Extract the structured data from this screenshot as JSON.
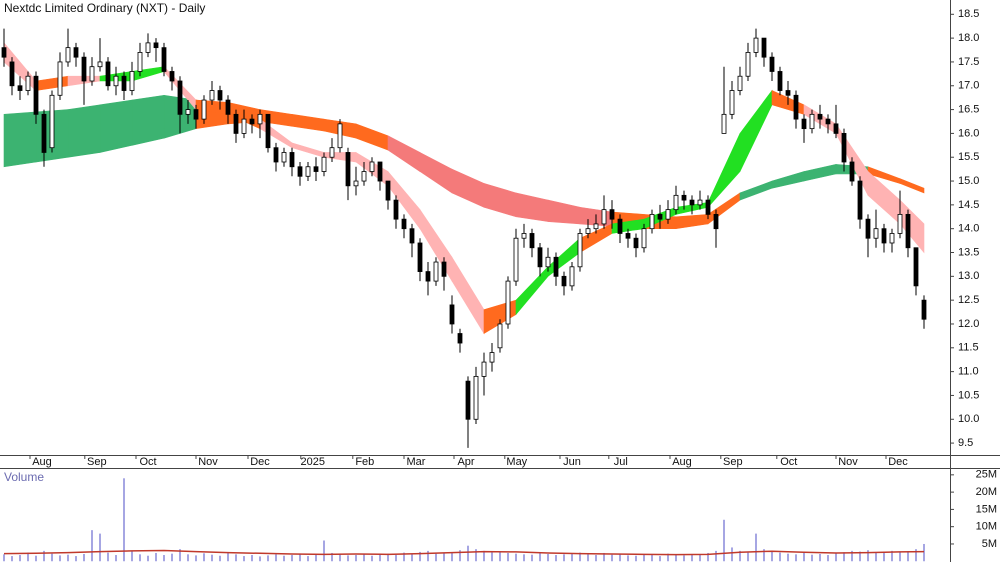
{
  "chart_data": [
    {
      "type": "candlestick",
      "title": "Nextdc Limited Ordinary (NXT) - Daily",
      "xlim": [
        -0.5,
        118.25
      ],
      "xticks": [
        {
          "value": 4.75,
          "label": "Aug"
        },
        {
          "value": 11.6,
          "label": "Sep"
        },
        {
          "value": 18,
          "label": "Oct"
        },
        {
          "value": 25.5,
          "label": "Nov"
        },
        {
          "value": 32,
          "label": "Dec"
        },
        {
          "value": 38.6,
          "label": "2025"
        },
        {
          "value": 45.1,
          "label": "Feb"
        },
        {
          "value": 51.5,
          "label": "Mar"
        },
        {
          "value": 57.75,
          "label": "Apr"
        },
        {
          "value": 64.1,
          "label": "May"
        },
        {
          "value": 71,
          "label": "Jun"
        },
        {
          "value": 77.1,
          "label": "Jul"
        },
        {
          "value": 84.75,
          "label": "Aug"
        },
        {
          "value": 91.1,
          "label": "Sep"
        },
        {
          "value": 98.1,
          "label": "Oct"
        },
        {
          "value": 105.5,
          "label": "Nov"
        },
        {
          "value": 111.75,
          "label": "Dec"
        }
      ],
      "ylim": [
        9.25,
        18.8
      ],
      "yticks": [
        9.5,
        {
          "value": 10,
          "label": "10.0"
        },
        10.5,
        {
          "value": 11,
          "label": "11.0"
        },
        11.5,
        {
          "value": 12,
          "label": "12.0"
        },
        12.5,
        {
          "value": 13,
          "label": "13.0"
        },
        13.5,
        {
          "value": 14,
          "label": "14.0"
        },
        14.5,
        {
          "value": 15,
          "label": "15.0"
        },
        15.5,
        {
          "value": 16,
          "label": "16.0"
        },
        16.5,
        {
          "value": 17,
          "label": "17.0"
        },
        17.5,
        {
          "value": 18,
          "label": "18.0"
        },
        18.5
      ],
      "up_color": "#ffffff",
      "down_color": "#000000",
      "ohlc": [
        [
          17.8,
          18.2,
          17.4,
          17.6
        ],
        [
          17.5,
          17.6,
          16.8,
          17.0
        ],
        [
          17.0,
          17.2,
          16.7,
          16.9
        ],
        [
          16.9,
          17.3,
          16.8,
          17.2
        ],
        [
          17.2,
          17.3,
          16.2,
          16.4
        ],
        [
          16.4,
          16.5,
          15.3,
          15.6
        ],
        [
          15.7,
          16.9,
          15.6,
          16.8
        ],
        [
          16.8,
          17.7,
          16.7,
          17.5
        ],
        [
          17.5,
          18.2,
          17.4,
          17.8
        ],
        [
          17.8,
          17.9,
          17.4,
          17.6
        ],
        [
          17.6,
          17.7,
          16.6,
          17.1
        ],
        [
          17.1,
          17.6,
          17.0,
          17.4
        ],
        [
          17.4,
          18.0,
          17.3,
          17.5
        ],
        [
          17.5,
          17.6,
          16.9,
          17.0
        ],
        [
          17.0,
          17.4,
          16.8,
          17.2
        ],
        [
          17.2,
          17.3,
          16.7,
          16.9
        ],
        [
          16.9,
          17.5,
          16.8,
          17.3
        ],
        [
          17.3,
          17.9,
          17.2,
          17.7
        ],
        [
          17.7,
          18.1,
          17.6,
          17.9
        ],
        [
          17.9,
          18.0,
          17.5,
          17.8
        ],
        [
          17.8,
          17.9,
          17.2,
          17.3
        ],
        [
          17.3,
          17.4,
          16.9,
          17.1
        ],
        [
          17.1,
          17.2,
          16.0,
          16.4
        ],
        [
          16.4,
          16.7,
          16.2,
          16.5
        ],
        [
          16.5,
          16.6,
          16.1,
          16.3
        ],
        [
          16.3,
          16.8,
          16.2,
          16.7
        ],
        [
          16.7,
          17.1,
          16.6,
          16.9
        ],
        [
          16.9,
          17.0,
          16.5,
          16.7
        ],
        [
          16.7,
          16.8,
          16.2,
          16.4
        ],
        [
          16.4,
          16.5,
          15.8,
          16.0
        ],
        [
          16.0,
          16.5,
          15.9,
          16.3
        ],
        [
          16.3,
          16.4,
          16.0,
          16.2
        ],
        [
          16.2,
          16.5,
          15.9,
          16.4
        ],
        [
          16.4,
          16.4,
          15.6,
          15.7
        ],
        [
          15.7,
          15.8,
          15.2,
          15.4
        ],
        [
          15.4,
          15.7,
          15.3,
          15.6
        ],
        [
          15.6,
          15.7,
          15.1,
          15.3
        ],
        [
          15.3,
          15.4,
          14.9,
          15.1
        ],
        [
          15.1,
          15.4,
          15.0,
          15.3
        ],
        [
          15.3,
          15.5,
          15.0,
          15.2
        ],
        [
          15.2,
          15.6,
          15.1,
          15.5
        ],
        [
          15.5,
          15.9,
          15.4,
          15.7
        ],
        [
          15.7,
          16.3,
          15.6,
          16.2
        ],
        [
          15.6,
          15.7,
          14.6,
          14.9
        ],
        [
          14.9,
          15.3,
          14.7,
          15.0
        ],
        [
          15.0,
          15.4,
          14.9,
          15.2
        ],
        [
          15.2,
          15.5,
          15.1,
          15.4
        ],
        [
          15.4,
          15.4,
          14.8,
          15.0
        ],
        [
          15.0,
          15.0,
          14.4,
          14.6
        ],
        [
          14.6,
          14.7,
          14.0,
          14.2
        ],
        [
          14.2,
          14.3,
          13.8,
          14.0
        ],
        [
          14.0,
          14.1,
          13.4,
          13.7
        ],
        [
          13.7,
          13.8,
          12.9,
          13.1
        ],
        [
          13.1,
          13.3,
          12.6,
          12.9
        ],
        [
          12.9,
          13.4,
          12.8,
          13.3
        ],
        [
          13.3,
          13.4,
          12.7,
          13.0
        ],
        [
          12.4,
          12.6,
          11.8,
          12.0
        ],
        [
          11.8,
          11.9,
          11.4,
          11.6
        ],
        [
          10.8,
          10.9,
          9.4,
          10.0
        ],
        [
          10.0,
          11.1,
          9.9,
          10.9
        ],
        [
          10.9,
          11.4,
          10.5,
          11.2
        ],
        [
          11.2,
          11.6,
          11.0,
          11.4
        ],
        [
          11.5,
          12.1,
          11.4,
          12.0
        ],
        [
          12.0,
          13.0,
          11.9,
          12.9
        ],
        [
          12.9,
          14.0,
          12.8,
          13.8
        ],
        [
          13.8,
          14.1,
          13.6,
          13.9
        ],
        [
          13.9,
          14.0,
          13.4,
          13.6
        ],
        [
          13.6,
          13.7,
          13.0,
          13.2
        ],
        [
          13.2,
          13.6,
          13.1,
          13.4
        ],
        [
          13.4,
          13.5,
          12.8,
          13.0
        ],
        [
          13.0,
          13.1,
          12.6,
          12.8
        ],
        [
          12.8,
          13.3,
          12.7,
          13.2
        ],
        [
          13.2,
          14.0,
          13.1,
          13.9
        ],
        [
          13.9,
          14.2,
          13.8,
          14.0
        ],
        [
          14.0,
          14.3,
          13.9,
          14.1
        ],
        [
          14.1,
          14.7,
          14.0,
          14.4
        ],
        [
          14.4,
          14.6,
          14.0,
          14.2
        ],
        [
          14.2,
          14.3,
          13.7,
          13.9
        ],
        [
          13.9,
          14.0,
          13.6,
          13.8
        ],
        [
          13.8,
          13.9,
          13.4,
          13.6
        ],
        [
          13.6,
          14.1,
          13.5,
          14.0
        ],
        [
          14.0,
          14.4,
          13.9,
          14.3
        ],
        [
          14.3,
          14.5,
          14.0,
          14.2
        ],
        [
          14.2,
          14.6,
          14.1,
          14.4
        ],
        [
          14.4,
          14.9,
          14.3,
          14.7
        ],
        [
          14.7,
          14.8,
          14.4,
          14.6
        ],
        [
          14.6,
          14.7,
          14.3,
          14.5
        ],
        [
          14.5,
          14.8,
          14.4,
          14.6
        ],
        [
          14.6,
          14.7,
          14.2,
          14.3
        ],
        [
          14.3,
          14.4,
          13.6,
          14.0
        ],
        [
          16.0,
          17.4,
          16.0,
          16.4
        ],
        [
          16.4,
          17.1,
          16.3,
          16.9
        ],
        [
          16.9,
          17.4,
          16.8,
          17.2
        ],
        [
          17.2,
          17.9,
          17.1,
          17.7
        ],
        [
          17.7,
          18.2,
          17.6,
          18.0
        ],
        [
          18.0,
          18.0,
          17.4,
          17.6
        ],
        [
          17.6,
          17.7,
          17.1,
          17.3
        ],
        [
          17.3,
          17.4,
          16.8,
          16.9
        ],
        [
          16.9,
          17.1,
          16.6,
          16.8
        ],
        [
          16.8,
          16.9,
          16.1,
          16.3
        ],
        [
          16.3,
          16.4,
          15.8,
          16.1
        ],
        [
          16.1,
          16.5,
          16.0,
          16.4
        ],
        [
          16.4,
          16.6,
          16.1,
          16.3
        ],
        [
          16.3,
          16.4,
          16.0,
          16.2
        ],
        [
          16.2,
          16.6,
          15.9,
          16.0
        ],
        [
          16.0,
          16.1,
          15.2,
          15.4
        ],
        [
          15.4,
          15.5,
          14.9,
          15.0
        ],
        [
          15.0,
          15.1,
          14.0,
          14.2
        ],
        [
          14.2,
          14.3,
          13.4,
          13.8
        ],
        [
          13.8,
          14.4,
          13.6,
          14.0
        ],
        [
          14.0,
          14.1,
          13.5,
          13.7
        ],
        [
          13.7,
          14.0,
          13.5,
          13.9
        ],
        [
          13.9,
          14.8,
          13.8,
          14.3
        ],
        [
          14.3,
          14.4,
          13.4,
          13.6
        ],
        [
          13.6,
          13.6,
          12.6,
          12.8
        ],
        [
          12.5,
          12.6,
          11.9,
          12.1
        ]
      ],
      "band_x": [
        0,
        4,
        8,
        12,
        16,
        20,
        24,
        28,
        32,
        36,
        40,
        44,
        48,
        52,
        56,
        60,
        64,
        68,
        72,
        76,
        80,
        84,
        88,
        92,
        96,
        100,
        104,
        108,
        112,
        115
      ],
      "bands": [
        {
          "upper": [
            16.4,
            16.45,
            16.5,
            16.6,
            16.7,
            16.8,
            16.7,
            16.65,
            16.5,
            16.4,
            16.3,
            16.2,
            15.95,
            15.6,
            15.25,
            14.95,
            14.75,
            14.6,
            14.45,
            14.35,
            14.3,
            14.25,
            14.3,
            14.75,
            15.0,
            15.2,
            15.35,
            15.3,
            15.05,
            14.85
          ],
          "lower": [
            15.3,
            15.4,
            15.5,
            15.6,
            15.75,
            15.9,
            16.1,
            16.2,
            16.25,
            16.15,
            16.05,
            15.9,
            15.65,
            15.2,
            14.75,
            14.45,
            14.25,
            14.15,
            14.1,
            14.05,
            14.0,
            14.0,
            14.1,
            14.6,
            14.85,
            15.0,
            15.15,
            15.15,
            14.95,
            14.75
          ],
          "colors": [
            "#3cb371",
            "#3cb371",
            "#3cb371",
            "#3cb371",
            "#3cb371",
            "#3cb371",
            "#ff6a1e",
            "#ff6a1e",
            "#ff6a1e",
            "#ff6a1e",
            "#ff6a1e",
            "#ff6a1e",
            "#f47a7a",
            "#f47a7a",
            "#f47a7a",
            "#f47a7a",
            "#f47a7a",
            "#f47a7a",
            "#f47a7a",
            "#ff6a1e",
            "#ff6a1e",
            "#ff6a1e",
            "#ff6a1e",
            "#3cb371",
            "#3cb371",
            "#3cb371",
            "#3cb371",
            "#ff6a1e",
            "#ff6a1e"
          ]
        },
        {
          "upper": [
            17.9,
            17.1,
            17.2,
            17.2,
            17.3,
            17.4,
            16.7,
            16.6,
            16.3,
            15.8,
            15.6,
            15.6,
            15.2,
            14.4,
            13.4,
            12.3,
            12.5,
            13.2,
            13.8,
            14.1,
            14.2,
            14.45,
            14.55,
            16.0,
            16.9,
            16.6,
            16.2,
            15.2,
            14.6,
            14.1
          ],
          "lower": [
            17.5,
            16.9,
            17.0,
            17.1,
            17.1,
            17.3,
            16.5,
            16.4,
            16.1,
            15.7,
            15.5,
            15.4,
            14.9,
            14.0,
            12.9,
            11.8,
            12.2,
            13.0,
            13.5,
            13.9,
            14.0,
            14.3,
            14.45,
            15.2,
            16.6,
            16.4,
            16.0,
            14.7,
            14.1,
            13.5
          ],
          "colors": [
            "#ffb3b3",
            "#ff6a1e",
            "#ffb3b3",
            "#22e022",
            "#22e022",
            "#ffb3b3",
            "#ff6a1e",
            "#ff6a1e",
            "#ffb3b3",
            "#ffb3b3",
            "#ffb3b3",
            "#ffb3b3",
            "#ffb3b3",
            "#ffb3b3",
            "#ffb3b3",
            "#ff6a1e",
            "#22e022",
            "#22e022",
            "#ff6a1e",
            "#22e022",
            "#22e022",
            "#22e022",
            "#22e022",
            "#22e022",
            "#ff6a1e",
            "#ffb3b3",
            "#ffb3b3",
            "#ffb3b3",
            "#ffb3b3"
          ]
        }
      ]
    },
    {
      "type": "volume",
      "title": "Volume",
      "color": "#6b6bd0",
      "ma_color": "#c0392b",
      "ylim": [
        0,
        26.4
      ],
      "yticks": [
        {
          "value": 5,
          "label": "5M"
        },
        {
          "value": 10,
          "label": "10M"
        },
        {
          "value": 15,
          "label": "15M"
        },
        {
          "value": 20,
          "label": "20M"
        },
        {
          "value": 25,
          "label": "25M"
        }
      ],
      "values": [
        2.0,
        1.5,
        1.8,
        2.5,
        1.6,
        3.0,
        2.2,
        1.7,
        1.9,
        1.5,
        2.1,
        9.0,
        8.0,
        2.5,
        1.8,
        24.0,
        3.0,
        2.0,
        1.6,
        2.4,
        1.8,
        2.2,
        3.5,
        2.0,
        1.7,
        2.3,
        1.9,
        1.6,
        2.6,
        2.0,
        1.5,
        1.8,
        1.4,
        1.7,
        2.0,
        1.6,
        1.8,
        2.2,
        1.5,
        1.9,
        6.0,
        2.4,
        2.0,
        1.7,
        1.8,
        2.1,
        1.6,
        1.9,
        2.2,
        1.8,
        2.5,
        2.0,
        2.7,
        3.0,
        2.2,
        2.4,
        2.6,
        3.2,
        4.5,
        3.5,
        3.0,
        2.6,
        2.8,
        2.4,
        2.2,
        2.0,
        1.9,
        2.3,
        2.1,
        1.8,
        2.0,
        2.2,
        2.5,
        2.0,
        1.8,
        2.4,
        1.9,
        2.1,
        1.7,
        1.6,
        2.0,
        1.8,
        1.5,
        2.2,
        1.9,
        1.7,
        2.0,
        1.8,
        2.4,
        3.0,
        12.0,
        4.0,
        3.0,
        2.5,
        8.0,
        3.5,
        3.0,
        2.5,
        2.2,
        2.0,
        2.4,
        1.9,
        2.1,
        1.8,
        2.3,
        2.6,
        3.0,
        2.8,
        3.2,
        2.6,
        2.5,
        3.0,
        2.7,
        2.9,
        3.5,
        5.0
      ],
      "ma": [
        2.2,
        2.3,
        2.5,
        2.8,
        3.0,
        3.1,
        2.8,
        2.5,
        2.3,
        2.1,
        2.0,
        2.1,
        2.0,
        2.2,
        2.5,
        2.8,
        2.7,
        2.4,
        2.2,
        2.1,
        2.0,
        1.9,
        2.0,
        2.6,
        2.9,
        2.6,
        2.4,
        2.5,
        2.7,
        2.8
      ]
    }
  ]
}
